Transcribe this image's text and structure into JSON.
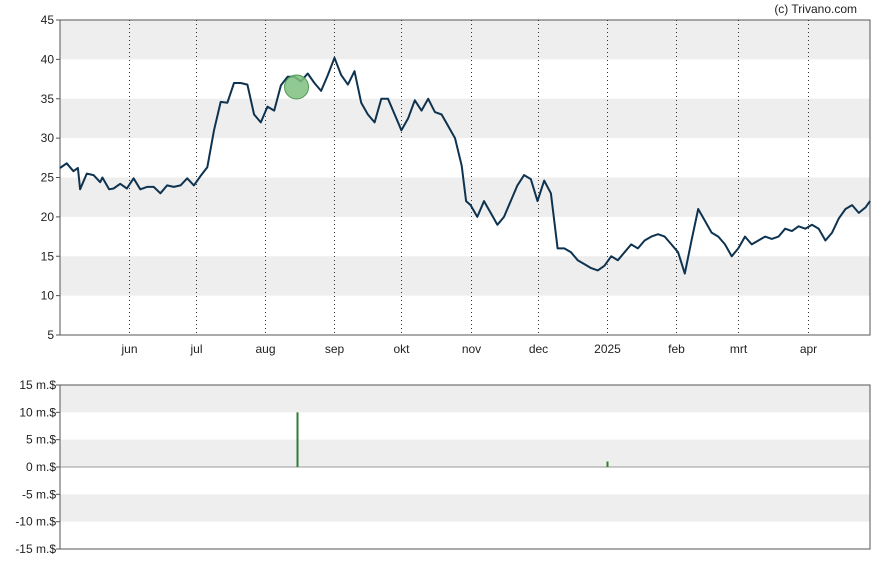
{
  "credit": "(c) Trivano.com",
  "colors": {
    "price_line": "#0e3350",
    "band": "#eeeeee",
    "volume_bar": "#2e7d32",
    "marker_fill": "#7fbf7f",
    "marker_stroke": "#4a9a55"
  },
  "chart_data": [
    {
      "type": "line",
      "title": "",
      "xlabel": "",
      "ylabel": "",
      "ylim": [
        5,
        45
      ],
      "y_ticks": [
        "5",
        "10",
        "15",
        "20",
        "25",
        "30",
        "35",
        "40",
        "45"
      ],
      "x_tick_labels": [
        "jun",
        "jul",
        "aug",
        "sep",
        "okt",
        "nov",
        "dec",
        "2025",
        "feb",
        "mrt",
        "apr"
      ],
      "x_tick_dates": [
        "2024-06-01",
        "2024-07-01",
        "2024-08-01",
        "2024-09-01",
        "2024-10-01",
        "2024-11-01",
        "2024-12-01",
        "2025-01-01",
        "2025-02-01",
        "2025-03-01",
        "2025-04-01"
      ],
      "x_range": [
        "2024-05-01",
        "2025-04-29"
      ],
      "grid": "dotted vertical lines at month ticks, alternating horizontal bands",
      "series": [
        {
          "x": [
            "2024-05-01",
            "2024-05-04",
            "2024-05-07",
            "2024-05-09",
            "2024-05-10",
            "2024-05-13",
            "2024-05-16",
            "2024-05-19",
            "2024-05-20",
            "2024-05-23",
            "2024-05-25",
            "2024-05-28",
            "2024-05-31",
            "2024-06-03",
            "2024-06-06",
            "2024-06-09",
            "2024-06-12",
            "2024-06-15",
            "2024-06-18",
            "2024-06-21",
            "2024-06-24",
            "2024-06-27",
            "2024-06-30",
            "2024-07-03",
            "2024-07-06",
            "2024-07-09",
            "2024-07-12",
            "2024-07-15",
            "2024-07-18",
            "2024-07-21",
            "2024-07-24",
            "2024-07-27",
            "2024-07-30",
            "2024-08-02",
            "2024-08-05",
            "2024-08-08",
            "2024-08-11",
            "2024-08-14",
            "2024-08-17",
            "2024-08-20",
            "2024-08-23",
            "2024-08-26",
            "2024-08-29",
            "2024-09-01",
            "2024-09-04",
            "2024-09-07",
            "2024-09-10",
            "2024-09-13",
            "2024-09-16",
            "2024-09-19",
            "2024-09-22",
            "2024-09-25",
            "2024-09-28",
            "2024-10-01",
            "2024-10-04",
            "2024-10-07",
            "2024-10-10",
            "2024-10-13",
            "2024-10-16",
            "2024-10-19",
            "2024-10-22",
            "2024-10-25",
            "2024-10-28",
            "2024-10-30",
            "2024-11-01",
            "2024-11-04",
            "2024-11-07",
            "2024-11-10",
            "2024-11-13",
            "2024-11-16",
            "2024-11-19",
            "2024-11-22",
            "2024-11-25",
            "2024-11-28",
            "2024-12-01",
            "2024-12-04",
            "2024-12-07",
            "2024-12-10",
            "2024-12-13",
            "2024-12-16",
            "2024-12-19",
            "2024-12-22",
            "2024-12-25",
            "2024-12-28",
            "2024-12-31",
            "2025-01-03",
            "2025-01-06",
            "2025-01-09",
            "2025-01-12",
            "2025-01-15",
            "2025-01-18",
            "2025-01-21",
            "2025-01-24",
            "2025-01-27",
            "2025-01-30",
            "2025-02-02",
            "2025-02-05",
            "2025-02-08",
            "2025-02-11",
            "2025-02-14",
            "2025-02-17",
            "2025-02-20",
            "2025-02-23",
            "2025-02-26",
            "2025-03-01",
            "2025-03-04",
            "2025-03-07",
            "2025-03-10",
            "2025-03-13",
            "2025-03-16",
            "2025-03-19",
            "2025-03-22",
            "2025-03-25",
            "2025-03-28",
            "2025-03-31",
            "2025-04-03",
            "2025-04-06",
            "2025-04-09",
            "2025-04-12",
            "2025-04-15",
            "2025-04-18",
            "2025-04-21",
            "2025-04-24",
            "2025-04-27",
            "2025-04-29"
          ],
          "y": [
            26.2,
            26.8,
            25.8,
            26.2,
            23.5,
            25.5,
            25.3,
            24.4,
            25.0,
            23.5,
            23.6,
            24.2,
            23.6,
            24.9,
            23.5,
            23.8,
            23.8,
            23.0,
            24.0,
            23.8,
            24.0,
            24.9,
            24.0,
            25.2,
            26.3,
            31.0,
            34.6,
            34.5,
            37.0,
            37.0,
            36.8,
            33.0,
            32.0,
            34.0,
            33.5,
            36.7,
            37.8,
            37.8,
            37.2,
            38.2,
            37.0,
            36.0,
            38.0,
            40.2,
            38.0,
            36.8,
            38.5,
            34.5,
            33.0,
            32.0,
            35.0,
            35.0,
            33.0,
            31.0,
            32.5,
            34.8,
            33.5,
            35.0,
            33.3,
            33.0,
            31.5,
            30.0,
            26.5,
            22.0,
            21.5,
            20.0,
            22.0,
            20.5,
            19.0,
            20.0,
            22.0,
            24.0,
            25.3,
            24.8,
            22.0,
            24.6,
            23.0,
            16.0,
            16.0,
            15.5,
            14.5,
            14.0,
            13.5,
            13.2,
            13.8,
            15.0,
            14.5,
            15.5,
            16.5,
            16.0,
            17.0,
            17.5,
            17.8,
            17.5,
            16.5,
            15.5,
            12.8,
            17.0,
            21.0,
            19.5,
            18.0,
            17.5,
            16.5,
            15.0,
            16.0,
            17.5,
            16.5,
            17.0,
            17.5,
            17.2,
            17.5,
            18.5,
            18.2,
            18.8,
            18.5,
            19.0,
            18.5,
            17.0,
            18.0,
            19.8,
            21.0,
            21.5,
            20.5,
            21.2,
            22.0
          ]
        }
      ],
      "markers": [
        {
          "date": "2024-08-15",
          "y": 36.5,
          "shape": "circle"
        }
      ]
    },
    {
      "type": "bar",
      "title": "",
      "xlabel": "",
      "ylabel": "",
      "ylim": [
        -15,
        15
      ],
      "y_ticks": [
        "15 m.$",
        "10 m.$",
        "5 m.$",
        "0 m.$",
        "-5 m.$",
        "-10 m.$",
        "-15 m.$"
      ],
      "y_tick_values": [
        15,
        10,
        5,
        0,
        -5,
        -10,
        -15
      ],
      "unit": "m.$",
      "x_range": [
        "2024-05-01",
        "2025-04-29"
      ],
      "bars": [
        {
          "date": "2024-08-15",
          "value": 10.0
        },
        {
          "date": "2025-01-01",
          "value": 1.0
        }
      ]
    }
  ]
}
